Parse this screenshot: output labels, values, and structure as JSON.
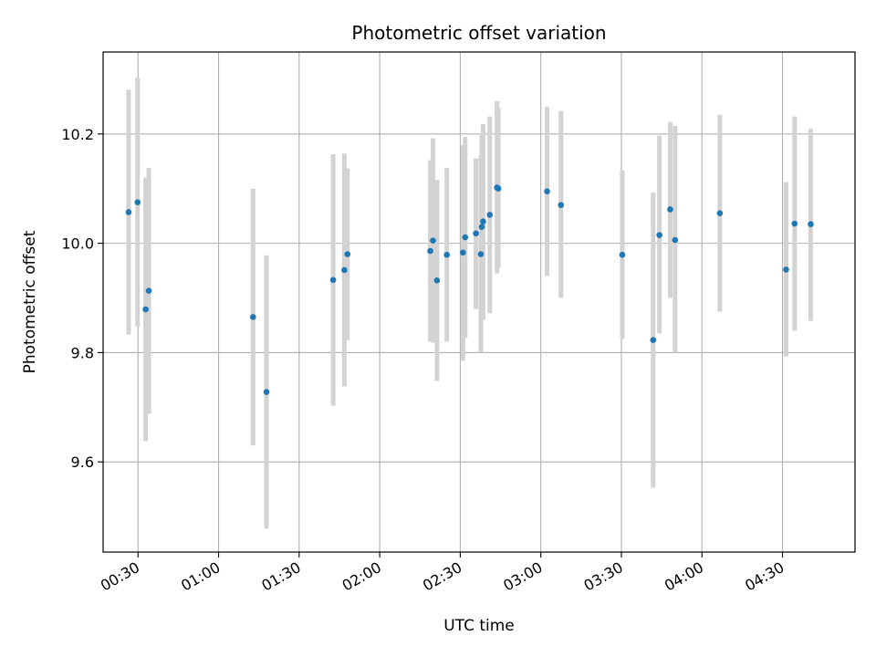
{
  "chart_data": {
    "type": "scatter",
    "title": "Photometric offset variation",
    "xlabel": "UTC time",
    "ylabel": "Photometric offset",
    "x_unit": "UTC time (HH:MM)",
    "xlim": [
      "00:17",
      "04:57"
    ],
    "ylim": [
      9.435,
      10.35
    ],
    "x_ticks": [
      "00:30",
      "01:00",
      "01:30",
      "02:00",
      "02:30",
      "03:00",
      "03:30",
      "04:00",
      "04:30"
    ],
    "y_ticks": [
      9.6,
      9.8,
      10.0,
      10.2
    ],
    "y_tick_labels": [
      "9.6",
      "9.8",
      "10.0",
      "10.2"
    ],
    "grid": true,
    "legend": "none",
    "colors": {
      "point": "#1f77b4",
      "errorbar": "#d3d3d3",
      "grid": "#b0b0b0"
    },
    "series": [
      {
        "points": [
          {
            "t": "00:26:30",
            "y": 10.057,
            "ylo": 9.833,
            "yhi": 10.281
          },
          {
            "t": "00:29:50",
            "y": 10.075,
            "ylo": 9.847,
            "yhi": 10.303
          },
          {
            "t": "00:32:50",
            "y": 9.879,
            "ylo": 9.638,
            "yhi": 10.12
          },
          {
            "t": "00:34:00",
            "y": 9.913,
            "ylo": 9.688,
            "yhi": 10.138
          },
          {
            "t": "01:12:50",
            "y": 9.865,
            "ylo": 9.63,
            "yhi": 10.1
          },
          {
            "t": "01:17:50",
            "y": 9.728,
            "ylo": 9.478,
            "yhi": 9.978
          },
          {
            "t": "01:42:40",
            "y": 9.933,
            "ylo": 9.703,
            "yhi": 10.163
          },
          {
            "t": "01:46:50",
            "y": 9.951,
            "ylo": 9.738,
            "yhi": 10.164
          },
          {
            "t": "01:48:00",
            "y": 9.98,
            "ylo": 9.823,
            "yhi": 10.137
          },
          {
            "t": "02:18:50",
            "y": 9.986,
            "ylo": 9.82,
            "yhi": 10.152
          },
          {
            "t": "02:19:50",
            "y": 10.005,
            "ylo": 9.818,
            "yhi": 10.192
          },
          {
            "t": "02:21:20",
            "y": 9.932,
            "ylo": 9.748,
            "yhi": 10.116
          },
          {
            "t": "02:25:00",
            "y": 9.979,
            "ylo": 9.82,
            "yhi": 10.138
          },
          {
            "t": "02:31:00",
            "y": 9.983,
            "ylo": 9.785,
            "yhi": 10.18
          },
          {
            "t": "02:31:50",
            "y": 10.011,
            "ylo": 9.827,
            "yhi": 10.195
          },
          {
            "t": "02:35:50",
            "y": 10.018,
            "ylo": 9.88,
            "yhi": 10.155
          },
          {
            "t": "02:37:40",
            "y": 9.98,
            "ylo": 9.8,
            "yhi": 10.16
          },
          {
            "t": "02:38:00",
            "y": 10.03,
            "ylo": 9.88,
            "yhi": 10.2
          },
          {
            "t": "02:38:30",
            "y": 10.04,
            "ylo": 9.86,
            "yhi": 10.218
          },
          {
            "t": "02:41:00",
            "y": 10.052,
            "ylo": 9.872,
            "yhi": 10.232
          },
          {
            "t": "02:43:40",
            "y": 10.102,
            "ylo": 9.945,
            "yhi": 10.26
          },
          {
            "t": "02:44:10",
            "y": 10.1,
            "ylo": 9.955,
            "yhi": 10.248
          },
          {
            "t": "03:02:20",
            "y": 10.095,
            "ylo": 9.94,
            "yhi": 10.25
          },
          {
            "t": "03:07:30",
            "y": 10.07,
            "ylo": 9.9,
            "yhi": 10.242
          },
          {
            "t": "03:30:20",
            "y": 9.979,
            "ylo": 9.825,
            "yhi": 10.133
          },
          {
            "t": "03:41:50",
            "y": 9.823,
            "ylo": 9.553,
            "yhi": 10.093
          },
          {
            "t": "03:44:10",
            "y": 10.015,
            "ylo": 9.835,
            "yhi": 10.197
          },
          {
            "t": "03:48:10",
            "y": 10.062,
            "ylo": 9.9,
            "yhi": 10.222
          },
          {
            "t": "03:50:00",
            "y": 10.006,
            "ylo": 9.8,
            "yhi": 10.215
          },
          {
            "t": "04:06:40",
            "y": 10.055,
            "ylo": 9.875,
            "yhi": 10.235
          },
          {
            "t": "04:31:20",
            "y": 9.952,
            "ylo": 9.793,
            "yhi": 10.112
          },
          {
            "t": "04:34:30",
            "y": 10.036,
            "ylo": 9.84,
            "yhi": 10.232
          },
          {
            "t": "04:40:30",
            "y": 10.035,
            "ylo": 9.858,
            "yhi": 10.21
          }
        ]
      }
    ]
  }
}
